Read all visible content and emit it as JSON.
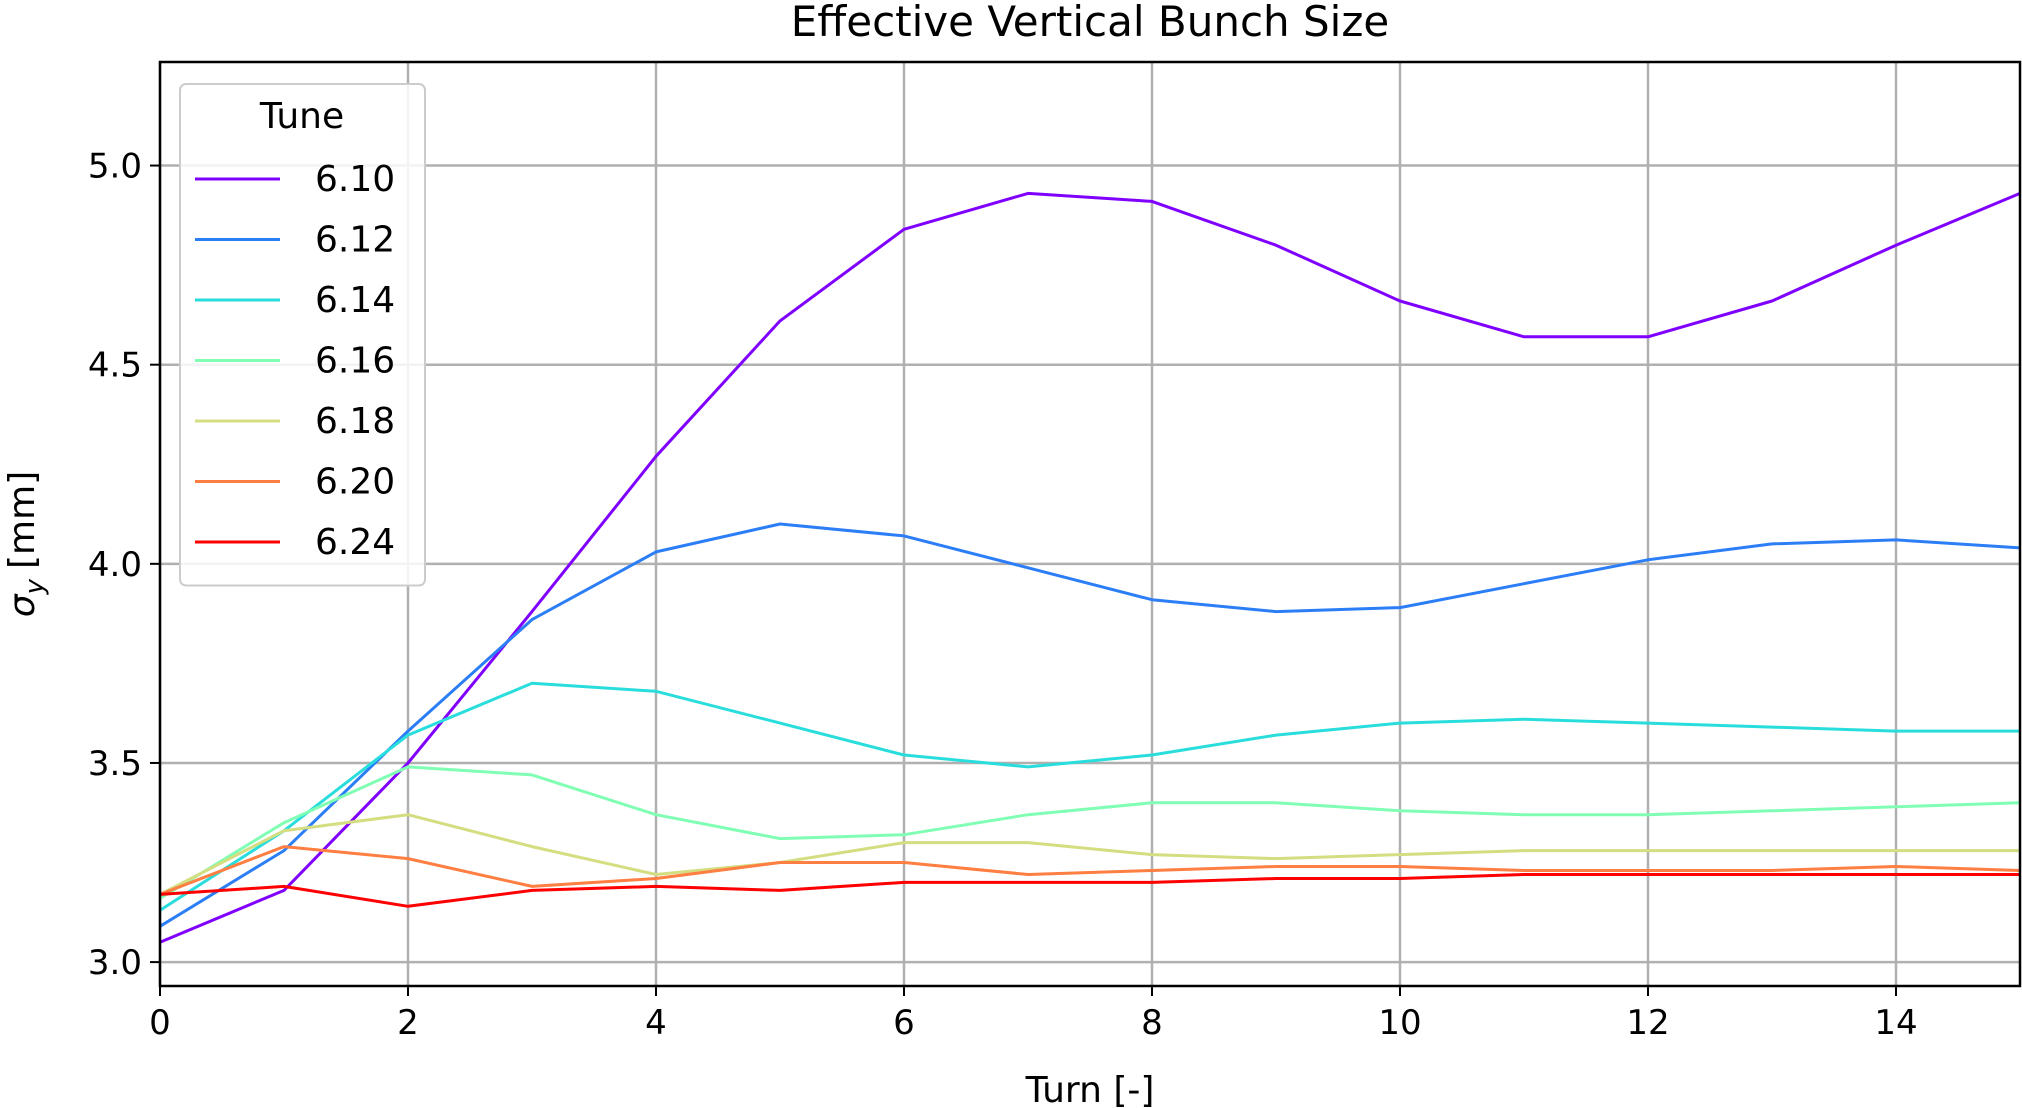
{
  "chart_data": {
    "type": "line",
    "title": "Effective Vertical Bunch Size",
    "xlabel": "Turn [-]",
    "ylabel_symbol": "σ",
    "ylabel_subscript": "y",
    "ylabel_unit": "[mm]",
    "xlim": [
      0,
      15
    ],
    "ylim": [
      2.94,
      5.26
    ],
    "xticks": [
      0,
      2,
      4,
      6,
      8,
      10,
      12,
      14
    ],
    "yticks": [
      3.0,
      3.5,
      4.0,
      4.5,
      5.0
    ],
    "ytick_decimals": 1,
    "grid": true,
    "legend": {
      "title": "Tune",
      "placement": "upper-left"
    },
    "x": [
      0,
      1,
      2,
      3,
      4,
      5,
      6,
      7,
      8,
      9,
      10,
      11,
      12,
      13,
      14,
      15
    ],
    "series": [
      {
        "name": "6.10",
        "color": "#8000ff",
        "values": [
          3.05,
          3.18,
          3.5,
          3.88,
          4.27,
          4.61,
          4.84,
          4.93,
          4.91,
          4.8,
          4.66,
          4.57,
          4.57,
          4.66,
          4.8,
          4.93
        ]
      },
      {
        "name": "6.12",
        "color": "#2c7ef7",
        "values": [
          3.09,
          3.28,
          3.58,
          3.86,
          4.03,
          4.1,
          4.07,
          3.99,
          3.91,
          3.88,
          3.89,
          3.95,
          4.01,
          4.05,
          4.06,
          4.04
        ]
      },
      {
        "name": "6.14",
        "color": "#2adddd",
        "values": [
          3.13,
          3.33,
          3.57,
          3.7,
          3.68,
          3.6,
          3.52,
          3.49,
          3.52,
          3.57,
          3.6,
          3.61,
          3.6,
          3.59,
          3.58,
          3.58
        ]
      },
      {
        "name": "6.16",
        "color": "#80ffb4",
        "values": [
          3.16,
          3.35,
          3.49,
          3.47,
          3.37,
          3.31,
          3.32,
          3.37,
          3.4,
          3.4,
          3.38,
          3.37,
          3.37,
          3.38,
          3.39,
          3.4
        ]
      },
      {
        "name": "6.18",
        "color": "#d4dd80",
        "values": [
          3.17,
          3.33,
          3.37,
          3.29,
          3.22,
          3.25,
          3.3,
          3.3,
          3.27,
          3.26,
          3.27,
          3.28,
          3.28,
          3.28,
          3.28,
          3.28
        ]
      },
      {
        "name": "6.20",
        "color": "#ff7e41",
        "values": [
          3.17,
          3.29,
          3.26,
          3.19,
          3.21,
          3.25,
          3.25,
          3.22,
          3.23,
          3.24,
          3.24,
          3.23,
          3.23,
          3.23,
          3.24,
          3.23
        ]
      },
      {
        "name": "6.24",
        "color": "#ff0000",
        "values": [
          3.17,
          3.19,
          3.14,
          3.18,
          3.19,
          3.18,
          3.2,
          3.2,
          3.2,
          3.21,
          3.21,
          3.22,
          3.22,
          3.22,
          3.22,
          3.22
        ]
      }
    ]
  }
}
